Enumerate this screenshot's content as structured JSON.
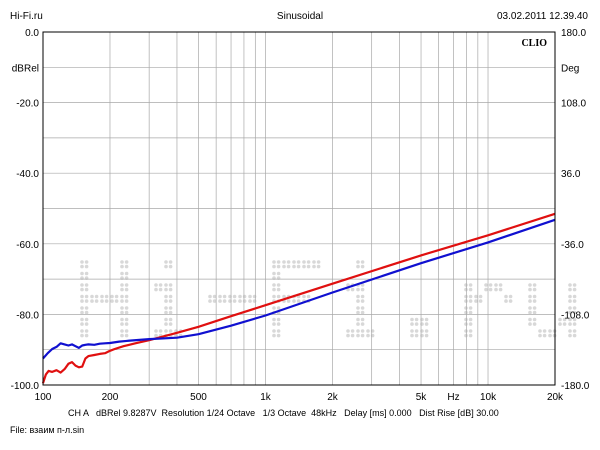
{
  "header": {
    "left": "Hi-Fi.ru",
    "center": "Sinusoidal",
    "right": "03.02.2011 12.39.40"
  },
  "watermark": {
    "brand": "CLIO",
    "background_text": "Hi-Fi.ru"
  },
  "status_line": "CH A   dBRel 9.8287V  Resolution 1/24 Octave   1/3 Octave  48kHz   Delay [ms] 0.000   Dist Rise [dB] 30.00",
  "file_line": "File: взаим п-л.sin",
  "chart_data": {
    "type": "line",
    "title": "Sinusoidal",
    "xlabel": "Hz",
    "ylabel": "dBRel",
    "y2label": "Deg",
    "xscale": "log",
    "xlim": [
      100,
      20000
    ],
    "ylim": [
      -100,
      0
    ],
    "y2lim": [
      -180,
      180
    ],
    "x_tick_labels": [
      "100",
      "200",
      "500",
      "1k",
      "2k",
      "5k",
      "10k",
      "20k"
    ],
    "x_tick_values": [
      100,
      200,
      500,
      1000,
      2000,
      5000,
      10000,
      20000
    ],
    "y_tick_labels": [
      "0.0",
      "-20.0",
      "-40.0",
      "-60.0",
      "-80.0",
      "-100.0"
    ],
    "y_tick_values": [
      0,
      -20,
      -40,
      -60,
      -80,
      -100
    ],
    "y2_tick_labels": [
      "180.0",
      "108.0",
      "36.0",
      "-36.0",
      "-108.0",
      "-180.0"
    ],
    "grid": true,
    "series": [
      {
        "color": "#e01010",
        "x": [
          100,
          103,
          106,
          110,
          115,
          120,
          125,
          130,
          135,
          140,
          145,
          150,
          155,
          160,
          170,
          180,
          190,
          200,
          210,
          230,
          260,
          300,
          400,
          500,
          700,
          1000,
          2000,
          5000,
          10000,
          20000
        ],
        "y": [
          -99.5,
          -97,
          -96,
          -96.3,
          -95.8,
          -96.5,
          -95.5,
          -94,
          -93.5,
          -94.5,
          -95,
          -94.8,
          -92.5,
          -91.8,
          -91.5,
          -91.2,
          -91,
          -90.3,
          -89.8,
          -89,
          -88.2,
          -87.3,
          -85.2,
          -83.5,
          -80.5,
          -77.4,
          -71.3,
          -63.3,
          -57.6,
          -51.5
        ]
      },
      {
        "color": "#1010d0",
        "x": [
          100,
          105,
          110,
          115,
          120,
          125,
          130,
          135,
          140,
          145,
          150,
          155,
          160,
          170,
          180,
          190,
          200,
          220,
          250,
          300,
          400,
          500,
          700,
          1000,
          2000,
          5000,
          10000,
          20000
        ],
        "y": [
          -92.5,
          -91,
          -89.8,
          -89.2,
          -88.2,
          -88.5,
          -88.8,
          -88.5,
          -89,
          -89.5,
          -88.8,
          -88.6,
          -88.5,
          -88.6,
          -88.3,
          -88.2,
          -88.1,
          -87.7,
          -87.4,
          -87,
          -86.6,
          -85.6,
          -83.2,
          -80.3,
          -73.8,
          -65.5,
          -59.6,
          -53.2
        ]
      }
    ]
  }
}
